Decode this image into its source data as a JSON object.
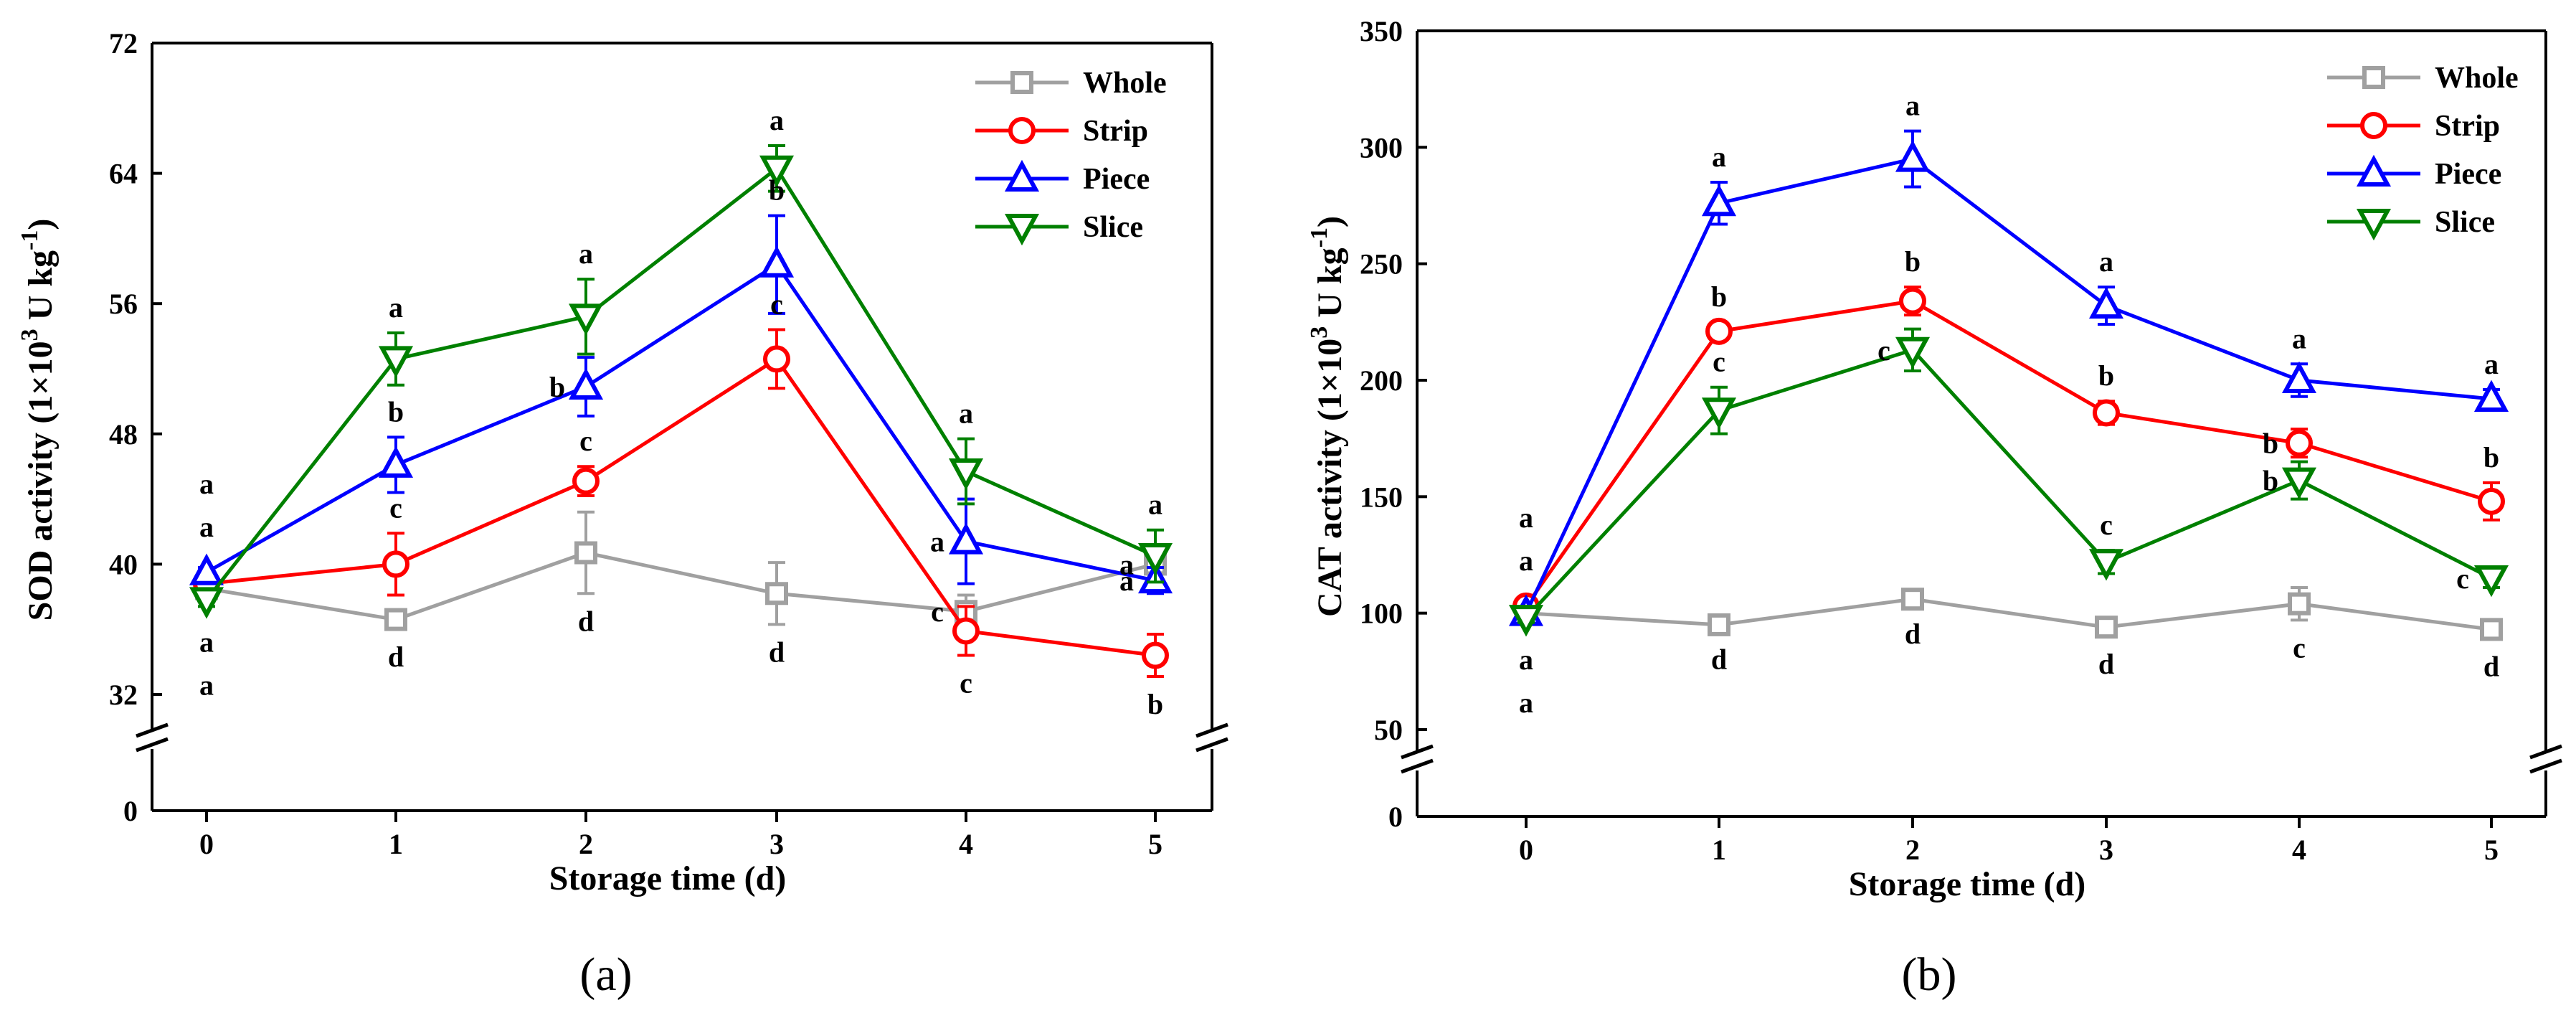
{
  "chart_data": [
    {
      "type": "line",
      "panel_label": "(a)",
      "xlabel": "Storage time (d)",
      "ylabel_main": "SOD activity (1×10",
      "ylabel_exp": "3",
      "ylabel_unit": " U kg",
      "ylabel_unit_exp": "-1",
      "ylabel_close": ")",
      "x": [
        0,
        1,
        2,
        3,
        4,
        5
      ],
      "x_tick_labels": [
        "0",
        "1",
        "2",
        "3",
        "4",
        "5"
      ],
      "ylim": [
        32,
        72
      ],
      "y_ticks": [
        32,
        40,
        48,
        56,
        64,
        72
      ],
      "y_tick_labels": [
        "32",
        "40",
        "48",
        "56",
        "64",
        "72"
      ],
      "y_break_zero_label": "0",
      "legend_position": "top-right",
      "series": [
        {
          "name": "Whole",
          "marker": "square",
          "color": "#a0a0a0",
          "values": [
            38.5,
            36.6,
            40.7,
            38.2,
            37.1,
            40.0
          ],
          "errors": [
            0.3,
            0.6,
            2.5,
            1.9,
            1.0,
            0.4
          ],
          "letters": [
            "a",
            "d",
            "d",
            "d",
            "c",
            "a"
          ]
        },
        {
          "name": "Strip",
          "marker": "circle",
          "color": "#ff0000",
          "values": [
            38.8,
            40.0,
            45.1,
            52.6,
            35.9,
            34.4
          ],
          "errors": [
            0.3,
            1.9,
            0.9,
            1.8,
            1.5,
            1.3
          ],
          "letters": [
            "a",
            "c",
            "c",
            "c",
            "c",
            "b"
          ]
        },
        {
          "name": "Piece",
          "marker": "triangle-up",
          "color": "#0000ff",
          "values": [
            39.5,
            46.1,
            50.9,
            58.4,
            41.4,
            39.0
          ],
          "errors": [
            0.3,
            1.7,
            1.8,
            3.0,
            2.6,
            0.8
          ],
          "letters": [
            "a",
            "b",
            "b",
            "b",
            "a",
            "a"
          ]
        },
        {
          "name": "Slice",
          "marker": "triangle-down",
          "color": "#008000",
          "values": [
            37.8,
            52.6,
            55.2,
            64.3,
            45.7,
            40.5
          ],
          "errors": [
            0.4,
            1.6,
            2.3,
            1.4,
            2.0,
            1.6
          ],
          "letters": [
            "a",
            "a",
            "a",
            "a",
            "a",
            "a"
          ]
        }
      ]
    },
    {
      "type": "line",
      "panel_label": "(b)",
      "xlabel": "Storage time (d)",
      "ylabel_main": "CAT activity (1×10",
      "ylabel_exp": "3",
      "ylabel_unit": " U kg",
      "ylabel_unit_exp": "-1",
      "ylabel_close": ")",
      "x": [
        0,
        1,
        2,
        3,
        4,
        5
      ],
      "x_tick_labels": [
        "0",
        "1",
        "2",
        "3",
        "4",
        "5"
      ],
      "ylim": [
        50,
        350
      ],
      "y_ticks": [
        50,
        100,
        150,
        200,
        250,
        300,
        350
      ],
      "y_tick_labels": [
        "50",
        "100",
        "150",
        "200",
        "250",
        "300",
        "350"
      ],
      "y_break_zero_label": "0",
      "legend_position": "top-right",
      "series": [
        {
          "name": "Whole",
          "marker": "square",
          "color": "#a0a0a0",
          "values": [
            100,
            95,
            106,
            94,
            104,
            93
          ],
          "errors": [
            3,
            3,
            3,
            4,
            7,
            4
          ],
          "letters": [
            "a",
            "d",
            "d",
            "d",
            "c",
            "d"
          ]
        },
        {
          "name": "Strip",
          "marker": "circle",
          "color": "#ff0000",
          "values": [
            103,
            221,
            234,
            186,
            173,
            148
          ],
          "errors": [
            2,
            4,
            6,
            5,
            6,
            8
          ],
          "letters": [
            "a",
            "b",
            "b",
            "b",
            "b",
            "b"
          ]
        },
        {
          "name": "Piece",
          "marker": "triangle-up",
          "color": "#0000ff",
          "values": [
            100,
            276,
            295,
            232,
            200,
            192
          ],
          "errors": [
            2,
            9,
            12,
            8,
            7,
            4
          ],
          "letters": [
            "a",
            "a",
            "a",
            "a",
            "a",
            "a"
          ]
        },
        {
          "name": "Slice",
          "marker": "triangle-down",
          "color": "#008000",
          "values": [
            98,
            187,
            213,
            122,
            157,
            115
          ],
          "errors": [
            2,
            10,
            9,
            5,
            8,
            4
          ],
          "letters": [
            "a",
            "c",
            "c",
            "c",
            "b",
            "c"
          ]
        }
      ]
    }
  ]
}
